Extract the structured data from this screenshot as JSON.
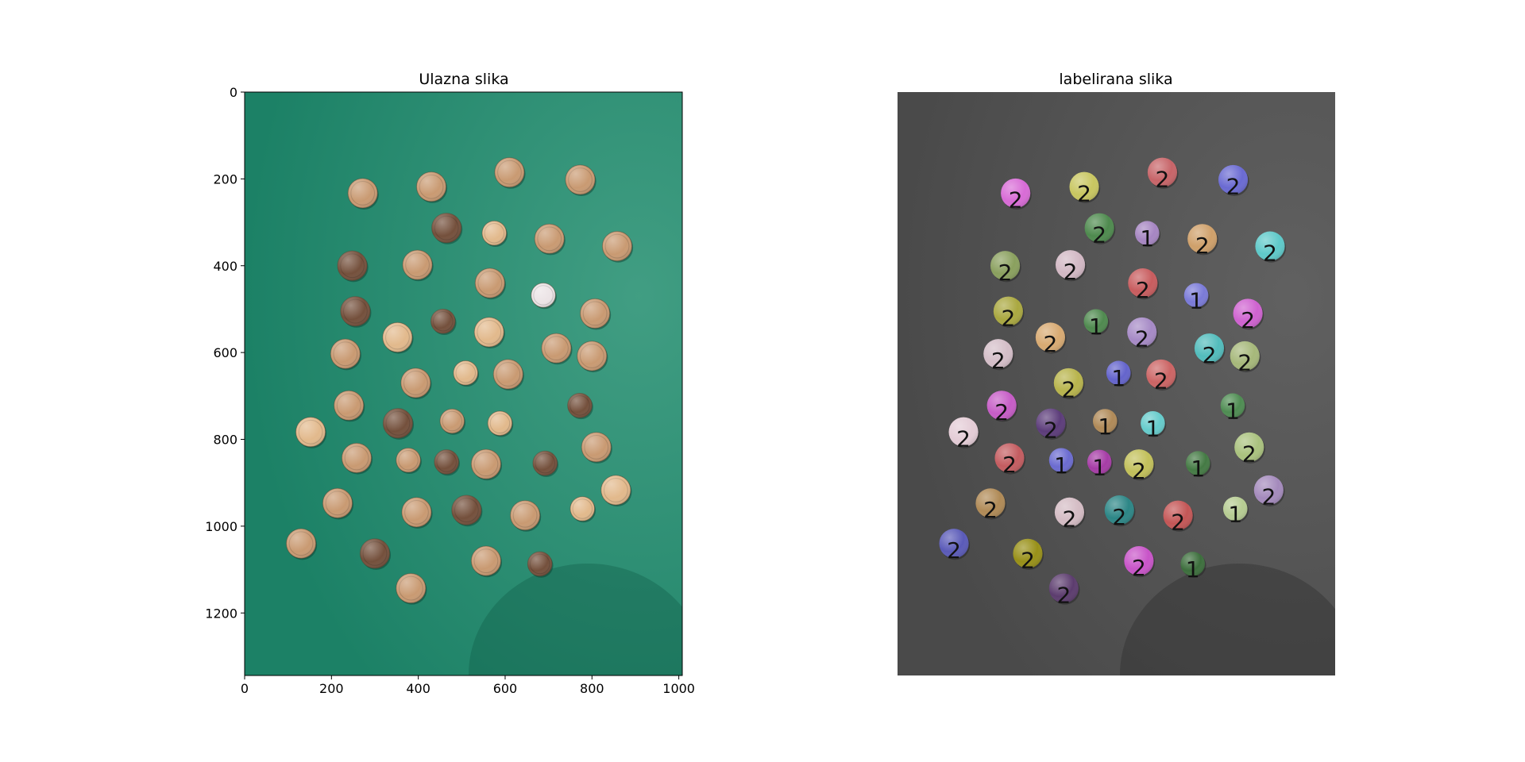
{
  "chart_data": [
    {
      "type": "image",
      "title": "Ulazna slika",
      "xlim": [
        0,
        1008
      ],
      "ylim": [
        1344,
        0
      ],
      "xticks": [
        0,
        200,
        400,
        600,
        800,
        1000
      ],
      "yticks": [
        0,
        200,
        400,
        600,
        800,
        1000,
        1200
      ],
      "xlabel": "",
      "ylabel": "",
      "colors": {
        "background": "#1c8166",
        "coin_light": "#e2b98c",
        "coin_mid": "#c99a72",
        "coin_dark": "#74503c"
      },
      "coins": [
        {
          "x": 272,
          "y": 233,
          "r": 34,
          "tone": "mid"
        },
        {
          "x": 430,
          "y": 218,
          "r": 34,
          "tone": "mid"
        },
        {
          "x": 610,
          "y": 185,
          "r": 34,
          "tone": "mid"
        },
        {
          "x": 773,
          "y": 202,
          "r": 34,
          "tone": "mid"
        },
        {
          "x": 465,
          "y": 313,
          "r": 34,
          "tone": "dark"
        },
        {
          "x": 575,
          "y": 325,
          "r": 28,
          "tone": "light"
        },
        {
          "x": 702,
          "y": 338,
          "r": 34,
          "tone": "mid"
        },
        {
          "x": 858,
          "y": 355,
          "r": 34,
          "tone": "mid"
        },
        {
          "x": 248,
          "y": 400,
          "r": 34,
          "tone": "dark"
        },
        {
          "x": 398,
          "y": 398,
          "r": 34,
          "tone": "mid"
        },
        {
          "x": 565,
          "y": 440,
          "r": 34,
          "tone": "mid"
        },
        {
          "x": 688,
          "y": 468,
          "r": 28,
          "tone": "pale"
        },
        {
          "x": 255,
          "y": 505,
          "r": 34,
          "tone": "dark"
        },
        {
          "x": 807,
          "y": 510,
          "r": 34,
          "tone": "mid"
        },
        {
          "x": 457,
          "y": 528,
          "r": 28,
          "tone": "dark"
        },
        {
          "x": 563,
          "y": 553,
          "r": 34,
          "tone": "light"
        },
        {
          "x": 352,
          "y": 565,
          "r": 34,
          "tone": "light"
        },
        {
          "x": 718,
          "y": 590,
          "r": 34,
          "tone": "mid"
        },
        {
          "x": 232,
          "y": 603,
          "r": 34,
          "tone": "mid"
        },
        {
          "x": 800,
          "y": 608,
          "r": 34,
          "tone": "mid"
        },
        {
          "x": 509,
          "y": 647,
          "r": 28,
          "tone": "light"
        },
        {
          "x": 607,
          "y": 650,
          "r": 34,
          "tone": "mid"
        },
        {
          "x": 394,
          "y": 670,
          "r": 34,
          "tone": "mid"
        },
        {
          "x": 240,
          "y": 722,
          "r": 34,
          "tone": "mid"
        },
        {
          "x": 772,
          "y": 722,
          "r": 28,
          "tone": "dark"
        },
        {
          "x": 353,
          "y": 763,
          "r": 34,
          "tone": "dark"
        },
        {
          "x": 478,
          "y": 758,
          "r": 28,
          "tone": "mid"
        },
        {
          "x": 588,
          "y": 763,
          "r": 28,
          "tone": "light"
        },
        {
          "x": 152,
          "y": 783,
          "r": 34,
          "tone": "light"
        },
        {
          "x": 810,
          "y": 818,
          "r": 34,
          "tone": "mid"
        },
        {
          "x": 258,
          "y": 843,
          "r": 34,
          "tone": "mid"
        },
        {
          "x": 377,
          "y": 848,
          "r": 28,
          "tone": "mid"
        },
        {
          "x": 465,
          "y": 852,
          "r": 28,
          "tone": "dark"
        },
        {
          "x": 556,
          "y": 857,
          "r": 34,
          "tone": "mid"
        },
        {
          "x": 692,
          "y": 855,
          "r": 28,
          "tone": "dark"
        },
        {
          "x": 855,
          "y": 917,
          "r": 34,
          "tone": "light"
        },
        {
          "x": 214,
          "y": 947,
          "r": 34,
          "tone": "mid"
        },
        {
          "x": 396,
          "y": 968,
          "r": 34,
          "tone": "mid"
        },
        {
          "x": 511,
          "y": 963,
          "r": 34,
          "tone": "dark"
        },
        {
          "x": 646,
          "y": 975,
          "r": 34,
          "tone": "mid"
        },
        {
          "x": 778,
          "y": 960,
          "r": 28,
          "tone": "light"
        },
        {
          "x": 130,
          "y": 1040,
          "r": 34,
          "tone": "mid"
        },
        {
          "x": 300,
          "y": 1063,
          "r": 34,
          "tone": "dark"
        },
        {
          "x": 556,
          "y": 1080,
          "r": 34,
          "tone": "mid"
        },
        {
          "x": 680,
          "y": 1087,
          "r": 28,
          "tone": "dark"
        },
        {
          "x": 383,
          "y": 1143,
          "r": 34,
          "tone": "mid"
        }
      ]
    },
    {
      "type": "image",
      "title": "labelirana slika",
      "xlim": [
        0,
        1008
      ],
      "ylim": [
        1344,
        0
      ],
      "axis": "off",
      "colors": {
        "background": "#4a4a4a",
        "label_text": "#111111"
      },
      "coins": [
        {
          "x": 272,
          "y": 233,
          "r": 34,
          "color": "#d86bd6",
          "label": "2"
        },
        {
          "x": 430,
          "y": 218,
          "r": 34,
          "color": "#c8c660",
          "label": "2"
        },
        {
          "x": 610,
          "y": 185,
          "r": 34,
          "color": "#c76468",
          "label": "2"
        },
        {
          "x": 773,
          "y": 202,
          "r": 34,
          "color": "#6a6ad2",
          "label": "2"
        },
        {
          "x": 465,
          "y": 313,
          "r": 34,
          "color": "#4e8a4e",
          "label": "2"
        },
        {
          "x": 575,
          "y": 325,
          "r": 28,
          "color": "#a686c2",
          "label": "1"
        },
        {
          "x": 702,
          "y": 338,
          "r": 34,
          "color": "#cfa06a",
          "label": "2"
        },
        {
          "x": 858,
          "y": 355,
          "r": 34,
          "color": "#5ec9c9",
          "label": "2"
        },
        {
          "x": 248,
          "y": 400,
          "r": 34,
          "color": "#8aa05e",
          "label": "2"
        },
        {
          "x": 398,
          "y": 398,
          "r": 34,
          "color": "#d2b8c4",
          "label": "2"
        },
        {
          "x": 565,
          "y": 440,
          "r": 34,
          "color": "#c85c5e",
          "label": "2"
        },
        {
          "x": 688,
          "y": 468,
          "r": 28,
          "color": "#7a7ad8",
          "label": "1"
        },
        {
          "x": 255,
          "y": 505,
          "r": 34,
          "color": "#aaa840",
          "label": "2"
        },
        {
          "x": 807,
          "y": 510,
          "r": 34,
          "color": "#cf62d0",
          "label": "2"
        },
        {
          "x": 457,
          "y": 528,
          "r": 28,
          "color": "#4f8a4f",
          "label": "1"
        },
        {
          "x": 563,
          "y": 553,
          "r": 34,
          "color": "#a68ac6",
          "label": "2"
        },
        {
          "x": 352,
          "y": 565,
          "r": 34,
          "color": "#d8aa72",
          "label": "2"
        },
        {
          "x": 718,
          "y": 590,
          "r": 34,
          "color": "#52bcbc",
          "label": "2"
        },
        {
          "x": 232,
          "y": 603,
          "r": 34,
          "color": "#d4bec8",
          "label": "2"
        },
        {
          "x": 800,
          "y": 608,
          "r": 34,
          "color": "#a6b87a",
          "label": "2"
        },
        {
          "x": 509,
          "y": 647,
          "r": 28,
          "color": "#6464cc",
          "label": "1"
        },
        {
          "x": 607,
          "y": 650,
          "r": 34,
          "color": "#cc6464",
          "label": "2"
        },
        {
          "x": 394,
          "y": 670,
          "r": 34,
          "color": "#b8b44c",
          "label": "2"
        },
        {
          "x": 240,
          "y": 722,
          "r": 34,
          "color": "#c65cc6",
          "label": "2"
        },
        {
          "x": 772,
          "y": 722,
          "r": 28,
          "color": "#4e8c52",
          "label": "1"
        },
        {
          "x": 353,
          "y": 763,
          "r": 34,
          "color": "#5c3c7a",
          "label": "2"
        },
        {
          "x": 478,
          "y": 758,
          "r": 28,
          "color": "#b08a58",
          "label": "1"
        },
        {
          "x": 588,
          "y": 763,
          "r": 28,
          "color": "#66cccc",
          "label": "1"
        },
        {
          "x": 152,
          "y": 783,
          "r": 34,
          "color": "#e4ccd6",
          "label": "2"
        },
        {
          "x": 810,
          "y": 818,
          "r": 34,
          "color": "#aac27e",
          "label": "2"
        },
        {
          "x": 258,
          "y": 843,
          "r": 34,
          "color": "#c45c60",
          "label": "2"
        },
        {
          "x": 377,
          "y": 848,
          "r": 28,
          "color": "#6b6bd0",
          "label": "1"
        },
        {
          "x": 465,
          "y": 852,
          "r": 28,
          "color": "#a63ca6",
          "label": "1"
        },
        {
          "x": 556,
          "y": 857,
          "r": 34,
          "color": "#c2c05a",
          "label": "2"
        },
        {
          "x": 692,
          "y": 855,
          "r": 28,
          "color": "#447a44",
          "label": "1"
        },
        {
          "x": 855,
          "y": 917,
          "r": 34,
          "color": "#a48abc",
          "label": "2"
        },
        {
          "x": 214,
          "y": 947,
          "r": 34,
          "color": "#b08a56",
          "label": "2"
        },
        {
          "x": 396,
          "y": 968,
          "r": 34,
          "color": "#d4bcc4",
          "label": "2"
        },
        {
          "x": 511,
          "y": 963,
          "r": 34,
          "color": "#2c8686",
          "label": "2"
        },
        {
          "x": 646,
          "y": 975,
          "r": 34,
          "color": "#c45656",
          "label": "2"
        },
        {
          "x": 778,
          "y": 960,
          "r": 28,
          "color": "#b6cc92",
          "label": "1"
        },
        {
          "x": 130,
          "y": 1040,
          "r": 34,
          "color": "#5a5ab8",
          "label": "2"
        },
        {
          "x": 300,
          "y": 1063,
          "r": 34,
          "color": "#989018",
          "label": "2"
        },
        {
          "x": 556,
          "y": 1080,
          "r": 34,
          "color": "#c854c8",
          "label": "2"
        },
        {
          "x": 680,
          "y": 1087,
          "r": 28,
          "color": "#3c6e3c",
          "label": "1"
        },
        {
          "x": 383,
          "y": 1143,
          "r": 34,
          "color": "#5c3c6e",
          "label": "2"
        }
      ]
    }
  ]
}
